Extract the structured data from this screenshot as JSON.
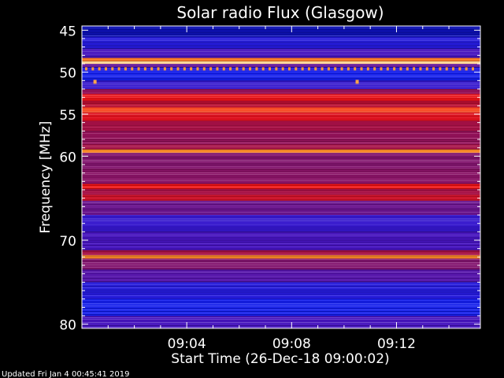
{
  "chart_data": {
    "type": "heatmap",
    "title": "Solar radio Flux (Glasgow)",
    "ylabel": "Frequency [MHz]",
    "xlabel": "Start Time (26-Dec-18 09:00:02)",
    "ylim": [
      44.5,
      80.5
    ],
    "x_range_minutes": [
      0,
      15.2
    ],
    "y_ticks": [
      {
        "value": 45,
        "label": "45"
      },
      {
        "value": 50,
        "label": "50"
      },
      {
        "value": 55,
        "label": "55"
      },
      {
        "value": 60,
        "label": "60"
      },
      {
        "value": 70,
        "label": "70"
      },
      {
        "value": 80,
        "label": "80"
      }
    ],
    "x_ticks": [
      {
        "value": 4,
        "label": "09:04"
      },
      {
        "value": 8,
        "label": "09:08"
      },
      {
        "value": 12,
        "label": "09:12"
      }
    ],
    "bands": [
      {
        "from": 44.5,
        "to": 45.8,
        "level": 0.05
      },
      {
        "from": 45.8,
        "to": 47.2,
        "level": 0.2
      },
      {
        "from": 47.2,
        "to": 48.3,
        "level": 0.3
      },
      {
        "from": 48.3,
        "to": 48.7,
        "level": 0.9
      },
      {
        "from": 48.7,
        "to": 49.0,
        "level": 0.98
      },
      {
        "from": 49.0,
        "to": 49.4,
        "level": 0.4
      },
      {
        "from": 49.4,
        "to": 49.8,
        "level": 0.2
      },
      {
        "from": 49.8,
        "to": 51.0,
        "level": 0.15
      },
      {
        "from": 51.0,
        "to": 52.0,
        "level": 0.25
      },
      {
        "from": 52.0,
        "to": 52.6,
        "level": 0.55
      },
      {
        "from": 52.6,
        "to": 53.4,
        "level": 0.78
      },
      {
        "from": 53.4,
        "to": 54.2,
        "level": 0.65
      },
      {
        "from": 54.2,
        "to": 54.8,
        "level": 0.85
      },
      {
        "from": 54.8,
        "to": 55.8,
        "level": 0.75
      },
      {
        "from": 55.8,
        "to": 57.0,
        "level": 0.6
      },
      {
        "from": 57.0,
        "to": 58.6,
        "level": 0.55
      },
      {
        "from": 58.6,
        "to": 59.2,
        "level": 0.6
      },
      {
        "from": 59.2,
        "to": 59.6,
        "level": 0.92
      },
      {
        "from": 59.6,
        "to": 61.5,
        "level": 0.5
      },
      {
        "from": 61.5,
        "to": 63.3,
        "level": 0.52
      },
      {
        "from": 63.3,
        "to": 63.9,
        "level": 0.8
      },
      {
        "from": 63.9,
        "to": 64.6,
        "level": 0.6
      },
      {
        "from": 64.6,
        "to": 65.3,
        "level": 0.7
      },
      {
        "from": 65.3,
        "to": 67.0,
        "level": 0.42
      },
      {
        "from": 67.0,
        "to": 69.0,
        "level": 0.25
      },
      {
        "from": 69.0,
        "to": 71.2,
        "level": 0.3
      },
      {
        "from": 71.2,
        "to": 71.8,
        "level": 0.6
      },
      {
        "from": 71.8,
        "to": 72.2,
        "level": 0.92
      },
      {
        "from": 72.2,
        "to": 73.5,
        "level": 0.5
      },
      {
        "from": 73.5,
        "to": 75.0,
        "level": 0.35
      },
      {
        "from": 75.0,
        "to": 77.0,
        "level": 0.2
      },
      {
        "from": 77.0,
        "to": 79.0,
        "level": 0.15
      },
      {
        "from": 79.0,
        "to": 80.5,
        "level": 0.3
      }
    ],
    "spots": [
      {
        "x": 0.5,
        "y": 51.1
      },
      {
        "x": 10.5,
        "y": 51.1
      }
    ],
    "dotted_row": {
      "y": 49.6,
      "from": 0.15,
      "to": 15.1,
      "step": 0.25
    },
    "grid": false,
    "legend": "none"
  },
  "footer": {
    "updated_text": "Updated Fri Jan  4 00:45:41 2019"
  }
}
